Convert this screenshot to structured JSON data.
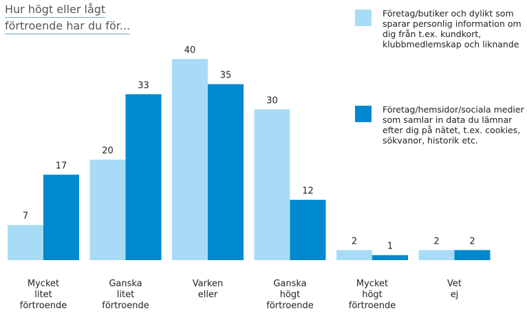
{
  "chart_data": {
    "type": "bar",
    "title": [
      "Hur högt eller lågt",
      "förtroende har du för..."
    ],
    "categories": [
      "Mycket litet förtroende",
      "Ganska litet förtroende",
      "Varken eller",
      "Ganska högt förtroende",
      "Mycket högt förtroende",
      "Vet ej"
    ],
    "series": [
      {
        "name": "Företag/butiker och dylikt som sparar personlig information om dig från t.ex. kundkort, klubbmedlemskap och liknande",
        "color": "#a8dcf6",
        "values": [
          7,
          20,
          40,
          30,
          2,
          2
        ]
      },
      {
        "name": "Företag/hemsidor/sociala medier som samlar in data du lämnar efter dig på nätet, t.ex. cookies, sökvanor, historik etc.",
        "color": "#0089cf",
        "values": [
          17,
          33,
          35,
          12,
          1,
          2
        ]
      }
    ],
    "ylim": [
      0,
      40
    ]
  }
}
